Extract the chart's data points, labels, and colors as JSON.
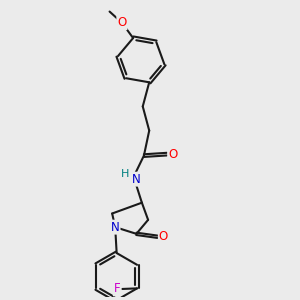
{
  "background_color": "#ebebeb",
  "bond_color": "#1a1a1a",
  "bond_width": 1.5,
  "atom_colors": {
    "O": "#ff0000",
    "N": "#0000cc",
    "F": "#cc00cc",
    "H": "#008080",
    "C": "#1a1a1a"
  },
  "font_size_atoms": 8.5,
  "font_size_hn": 8.0
}
